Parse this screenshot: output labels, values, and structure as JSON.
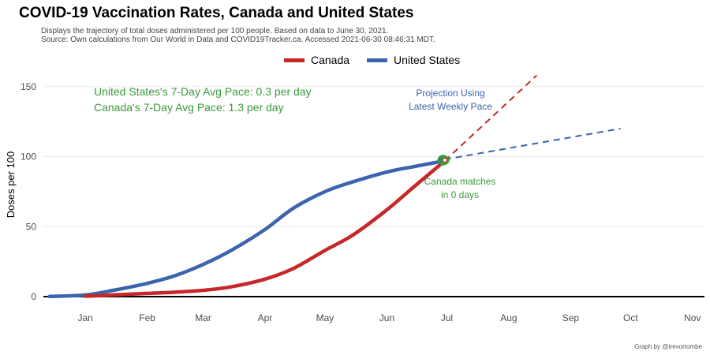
{
  "title": "COVID-19 Vaccination Rates, Canada and United States",
  "subtitle": [
    "Displays the trajectory of total doses administered per 100 people. Based on data to June 30, 2021.",
    "Source: Own calculations from Our World in Data and COVID19Tracker.ca. Accessed 2021-06-30 08:46:31 MDT."
  ],
  "caption": "Graph by @trevortombe",
  "colors": {
    "canada": "#c62828",
    "united_states": "#3b64ad",
    "annotation_green": "#3a9a3a",
    "grid": "#ebebeb"
  },
  "chart_data": {
    "type": "line",
    "title": "COVID-19 Vaccination Rates, Canada and United States",
    "ylabel": "Doses per 100",
    "xlabel": "",
    "ylim": [
      0,
      160
    ],
    "yticks": [
      0,
      50,
      100,
      150
    ],
    "x_axis": {
      "type": "date",
      "start": "2020-12-11",
      "end": "2021-11-07"
    },
    "xticks": [
      {
        "label": "Jan",
        "date": "2021-01-01"
      },
      {
        "label": "Feb",
        "date": "2021-02-01"
      },
      {
        "label": "Mar",
        "date": "2021-03-01"
      },
      {
        "label": "Apr",
        "date": "2021-04-01"
      },
      {
        "label": "May",
        "date": "2021-05-01"
      },
      {
        "label": "Jun",
        "date": "2021-06-01"
      },
      {
        "label": "Jul",
        "date": "2021-07-01"
      },
      {
        "label": "Aug",
        "date": "2021-08-01"
      },
      {
        "label": "Sep",
        "date": "2021-09-01"
      },
      {
        "label": "Oct",
        "date": "2021-10-01"
      },
      {
        "label": "Nov",
        "date": "2021-11-01"
      }
    ],
    "legend": {
      "position": "top",
      "entries": [
        "Canada",
        "United States"
      ]
    },
    "grid": true,
    "series": [
      {
        "name": "Canada",
        "color": "#c62828",
        "points": [
          [
            "2021-01-01",
            0.3
          ],
          [
            "2021-01-15",
            1.2
          ],
          [
            "2021-02-01",
            2.3
          ],
          [
            "2021-02-15",
            3.2
          ],
          [
            "2021-03-01",
            4.5
          ],
          [
            "2021-03-15",
            7
          ],
          [
            "2021-04-01",
            12.5
          ],
          [
            "2021-04-15",
            20
          ],
          [
            "2021-05-01",
            33
          ],
          [
            "2021-05-15",
            44
          ],
          [
            "2021-06-01",
            62
          ],
          [
            "2021-06-15",
            79
          ],
          [
            "2021-06-30",
            97
          ]
        ]
      },
      {
        "name": "United States",
        "color": "#3b64ad",
        "points": [
          [
            "2020-12-14",
            0.1
          ],
          [
            "2021-01-01",
            1.2
          ],
          [
            "2021-01-15",
            4.5
          ],
          [
            "2021-02-01",
            9.5
          ],
          [
            "2021-02-15",
            15
          ],
          [
            "2021-03-01",
            23
          ],
          [
            "2021-03-15",
            33
          ],
          [
            "2021-04-01",
            48
          ],
          [
            "2021-04-15",
            63
          ],
          [
            "2021-05-01",
            75
          ],
          [
            "2021-05-15",
            82
          ],
          [
            "2021-06-01",
            89
          ],
          [
            "2021-06-15",
            93
          ],
          [
            "2021-06-30",
            97
          ]
        ]
      }
    ],
    "projections": [
      {
        "name": "Canada",
        "style": "dashed",
        "from": [
          "2021-06-30",
          97
        ],
        "to": [
          "2021-08-15",
          158
        ]
      },
      {
        "name": "United States",
        "style": "dashed",
        "from": [
          "2021-06-30",
          98
        ],
        "to": [
          "2021-09-26",
          120
        ]
      }
    ],
    "endpoints": [
      {
        "name": "United States",
        "point": [
          "2021-06-29",
          97.5
        ]
      },
      {
        "name": "Canada",
        "point": [
          "2021-06-30",
          97.5
        ]
      }
    ],
    "annotations": [
      {
        "id": "us_pace",
        "text": "United States's 7-Day Avg Pace: 0.3 per day"
      },
      {
        "id": "ca_pace",
        "text": "Canada's 7-Day Avg Pace: 1.3 per day"
      },
      {
        "id": "projection",
        "lines": [
          "Projection Using",
          "Latest Weekly Pace"
        ]
      },
      {
        "id": "matches",
        "lines": [
          "Canada matches",
          "in 0 days"
        ]
      }
    ]
  }
}
